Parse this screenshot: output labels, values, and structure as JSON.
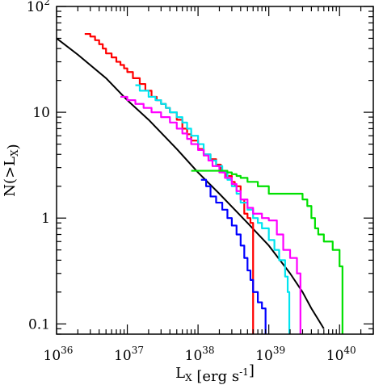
{
  "chart_data": {
    "type": "line",
    "x_scale": "log",
    "y_scale": "log",
    "xlim": [
      1e+36,
      3e+40
    ],
    "ylim": [
      0.08,
      100
    ],
    "xlabel": "L_X [erg s^-1]",
    "ylabel": "N(>L_X)",
    "grid": false,
    "legend": "none",
    "x_ticks": [
      {
        "value": 1e+36,
        "base": "10",
        "exp": "36"
      },
      {
        "value": 1e+37,
        "base": "10",
        "exp": "37"
      },
      {
        "value": 1e+38,
        "base": "10",
        "exp": "38"
      },
      {
        "value": 1e+39,
        "base": "10",
        "exp": "39"
      },
      {
        "value": 1e+40,
        "base": "10",
        "exp": "40"
      }
    ],
    "y_ticks": [
      {
        "value": 0.1,
        "label": "0.1"
      },
      {
        "value": 1,
        "label": "1"
      },
      {
        "value": 10,
        "label": "10"
      },
      {
        "value": 100,
        "label": "10",
        "exp": "2"
      }
    ],
    "series": [
      {
        "color": "#000000",
        "style": "smooth",
        "x": [
          1e+36,
          2e+36,
          5e+36,
          1e+37,
          2e+37,
          5e+37,
          1e+38,
          2e+38,
          5e+38,
          1e+39,
          2e+39,
          3e+39,
          4e+39,
          5e+39,
          6e+39
        ],
        "y": [
          50,
          35,
          21,
          13,
          8.5,
          4.5,
          2.7,
          1.7,
          0.9,
          0.55,
          0.3,
          0.2,
          0.14,
          0.11,
          0.09
        ]
      },
      {
        "color": "#ff0000",
        "style": "step",
        "x": [
          2.5e+36,
          3e+36,
          3.5e+36,
          4e+36,
          4.5e+36,
          5e+36,
          6e+36,
          7e+36,
          8e+36,
          9e+36,
          1e+37,
          1.2e+37,
          1.5e+37,
          1.8e+37,
          2.2e+37,
          2.6e+37,
          3e+37,
          3.5e+37,
          4e+37,
          5e+37,
          6e+37,
          7e+37,
          8e+37,
          1e+38,
          1.2e+38,
          1.5e+38,
          1.8e+38,
          2.1e+38,
          2.5e+38,
          3e+38,
          3.3e+38,
          4e+38,
          4.5e+38,
          5e+38,
          5.5e+38,
          6e+38,
          6e+38
        ],
        "y": [
          55,
          52,
          48,
          44,
          40,
          36,
          33,
          30,
          28,
          26,
          24,
          21,
          18.5,
          16,
          14,
          13,
          12,
          11,
          10,
          8.5,
          7,
          6.2,
          5.4,
          4.5,
          4,
          3.6,
          3.2,
          2.8,
          2.5,
          2.2,
          2,
          1.5,
          1.1,
          1.0,
          0.9,
          0.6,
          0.08
        ]
      },
      {
        "color": "#00e5f0",
        "style": "step",
        "x": [
          1.3e+37,
          1.5e+37,
          2e+37,
          2.5e+37,
          3e+37,
          3.5e+37,
          4e+37,
          5e+37,
          6e+37,
          7e+37,
          8e+37,
          1e+38,
          1.2e+38,
          1.5e+38,
          1.8e+38,
          2.2e+38,
          2.6e+38,
          3e+38,
          3.5e+38,
          4e+38,
          5e+38,
          6e+38,
          7e+38,
          8e+38,
          1e+39,
          1.2e+39,
          1.4e+39,
          1.7e+39,
          1.85e+39,
          1.95e+39,
          1.95e+39
        ],
        "y": [
          18,
          16,
          14,
          13,
          12,
          11,
          10,
          9,
          8,
          7,
          6,
          5,
          4,
          3.5,
          3.1,
          2.7,
          2.3,
          2.0,
          1.7,
          1.4,
          1.2,
          1.0,
          0.9,
          0.8,
          0.62,
          0.5,
          0.4,
          0.28,
          0.2,
          0.15,
          0.08
        ]
      },
      {
        "color": "#ff00ff",
        "style": "step",
        "x": [
          8e+36,
          1e+37,
          1.3e+37,
          1.7e+37,
          2.2e+37,
          3e+37,
          4e+37,
          5e+37,
          6e+37,
          7e+37,
          8e+37,
          1e+38,
          1.2e+38,
          1.4e+38,
          1.6e+38,
          2e+38,
          2.4e+38,
          3e+38,
          3.5e+38,
          4e+38,
          5e+38,
          6e+38,
          8e+38,
          1e+39,
          1.3e+39,
          1.6e+39,
          2e+39,
          2.5e+39,
          2.8e+39,
          2.8e+39
        ],
        "y": [
          14,
          13,
          12,
          11,
          10,
          9,
          8,
          7,
          6.3,
          5.6,
          5,
          4.4,
          3.9,
          3.5,
          3.1,
          2.7,
          2.4,
          2.1,
          1.8,
          1.5,
          1.25,
          1.1,
          1.0,
          0.95,
          0.7,
          0.5,
          0.42,
          0.3,
          0.2,
          0.08
        ]
      },
      {
        "color": "#00e000",
        "style": "step",
        "x": [
          8e+37,
          1.2e+38,
          1.6e+38,
          2e+38,
          2.3e+38,
          2.6e+38,
          3e+38,
          3.5e+38,
          4e+38,
          5e+38,
          7e+38,
          1e+39,
          1.5e+39,
          2e+39,
          2.5e+39,
          3e+39,
          3.5e+39,
          4e+39,
          4.5e+39,
          5e+39,
          6e+39,
          8e+39,
          1e+40,
          1.1e+40,
          1.1e+40
        ],
        "y": [
          2.8,
          2.8,
          2.8,
          2.8,
          2.8,
          2.7,
          2.6,
          2.5,
          2.4,
          2.2,
          2.0,
          1.7,
          1.7,
          1.7,
          1.7,
          1.5,
          1.3,
          1.0,
          0.8,
          0.7,
          0.6,
          0.5,
          0.35,
          0.15,
          0.08
        ]
      },
      {
        "color": "#0000ff",
        "style": "step",
        "x": [
          1.1e+38,
          1.3e+38,
          1.5e+38,
          1.8e+38,
          2.2e+38,
          2.6e+38,
          3e+38,
          3.5e+38,
          4e+38,
          4.5e+38,
          5e+38,
          5.5e+38,
          6e+38,
          7e+38,
          8e+38,
          9e+38,
          9e+38
        ],
        "y": [
          2.3,
          2.0,
          1.6,
          1.4,
          1.2,
          1.0,
          0.85,
          0.7,
          0.55,
          0.42,
          0.32,
          0.26,
          0.2,
          0.16,
          0.14,
          0.12,
          0.08
        ]
      }
    ]
  }
}
